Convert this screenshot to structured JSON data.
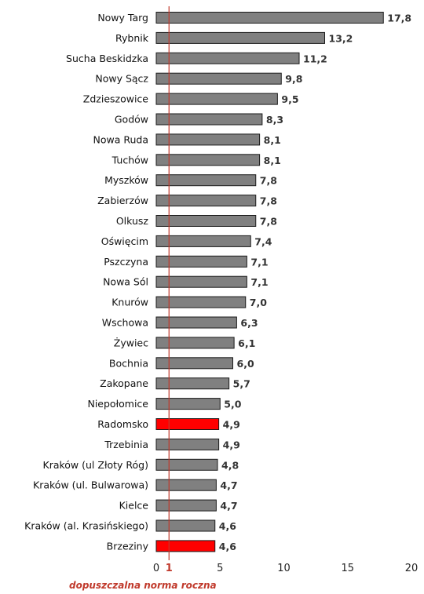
{
  "chart_data": {
    "type": "bar",
    "orientation": "horizontal",
    "categories": [
      "Nowy Targ",
      "Rybnik",
      "Sucha Beskidzka",
      "Nowy Sącz",
      "Zdzieszowice",
      "Godów",
      "Nowa Ruda",
      "Tuchów",
      "Myszków",
      "Zabierzów",
      "Olkusz",
      "Oświęcim",
      "Pszczyna",
      "Nowa Sól",
      "Knurów",
      "Wschowa",
      "Żywiec",
      "Bochnia",
      "Zakopane",
      "Niepołomice",
      "Radomsko",
      "Trzebinia",
      "Kraków (ul Złoty Róg)",
      "Kraków (ul. Bulwarowa)",
      "Kielce",
      "Kraków (al. Krasińskiego)",
      "Brzeziny"
    ],
    "values": [
      17.8,
      13.2,
      11.2,
      9.8,
      9.5,
      8.3,
      8.1,
      8.1,
      7.8,
      7.8,
      7.8,
      7.4,
      7.1,
      7.1,
      7.0,
      6.3,
      6.1,
      6.0,
      5.7,
      5.0,
      4.9,
      4.9,
      4.8,
      4.7,
      4.7,
      4.6,
      4.6
    ],
    "value_labels": [
      "17,8",
      "13,2",
      "11,2",
      "9,8",
      "9,5",
      "8,3",
      "8,1",
      "8,1",
      "7,8",
      "7,8",
      "7,8",
      "7,4",
      "7,1",
      "7,1",
      "7,0",
      "6,3",
      "6,1",
      "6,0",
      "5,7",
      "5,0",
      "4,9",
      "4,9",
      "4,8",
      "4,7",
      "4,7",
      "4,6",
      "4,6"
    ],
    "highlighted": [
      "Radomsko",
      "Brzeziny"
    ],
    "xlim": [
      0,
      20
    ],
    "x_ticks": [
      0,
      5,
      10,
      15,
      20
    ],
    "reference_line": {
      "value": 1,
      "label": "1"
    },
    "annotation": "dopuszczalna norma roczna",
    "grid": false,
    "legend": "none",
    "colors": {
      "bar": "#808080",
      "bar_highlight": "#ff0000",
      "bar_outline": "#1a1a1a",
      "reference_line": "#c0392b",
      "annotation": "#c0392b"
    }
  }
}
